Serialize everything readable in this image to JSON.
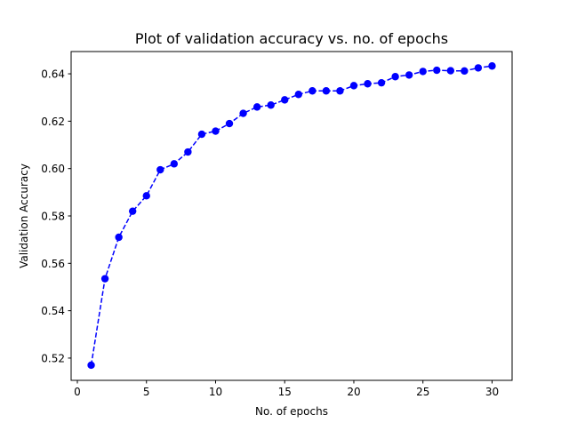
{
  "chart_data": {
    "type": "line",
    "title": "Plot of validation accuracy vs. no. of epochs",
    "xlabel": "No. of epochs",
    "ylabel": "Validation Accuracy",
    "xlim": [
      -0.45,
      31.45
    ],
    "ylim": [
      0.5106,
      0.6494
    ],
    "xticks": [
      0,
      5,
      10,
      15,
      20,
      25,
      30
    ],
    "yticks": [
      0.52,
      0.54,
      0.56,
      0.58,
      0.6,
      0.62,
      0.64
    ],
    "ytick_labels": [
      "0.52",
      "0.54",
      "0.56",
      "0.58",
      "0.60",
      "0.62",
      "0.64"
    ],
    "grid": false,
    "line_style": "dashed",
    "marker": "circle",
    "color": "#0000ff",
    "x": [
      1,
      2,
      3,
      4,
      5,
      6,
      7,
      8,
      9,
      10,
      11,
      12,
      13,
      14,
      15,
      16,
      17,
      18,
      19,
      20,
      21,
      22,
      23,
      24,
      25,
      26,
      27,
      28,
      29,
      30
    ],
    "series": [
      {
        "values": [
          0.517,
          0.5535,
          0.571,
          0.582,
          0.5885,
          0.5995,
          0.602,
          0.607,
          0.6145,
          0.6158,
          0.619,
          0.6233,
          0.626,
          0.6268,
          0.629,
          0.6313,
          0.6328,
          0.6328,
          0.6328,
          0.635,
          0.6358,
          0.6362,
          0.6388,
          0.6395,
          0.641,
          0.6415,
          0.6413,
          0.6412,
          0.6425,
          0.6433
        ]
      }
    ]
  }
}
